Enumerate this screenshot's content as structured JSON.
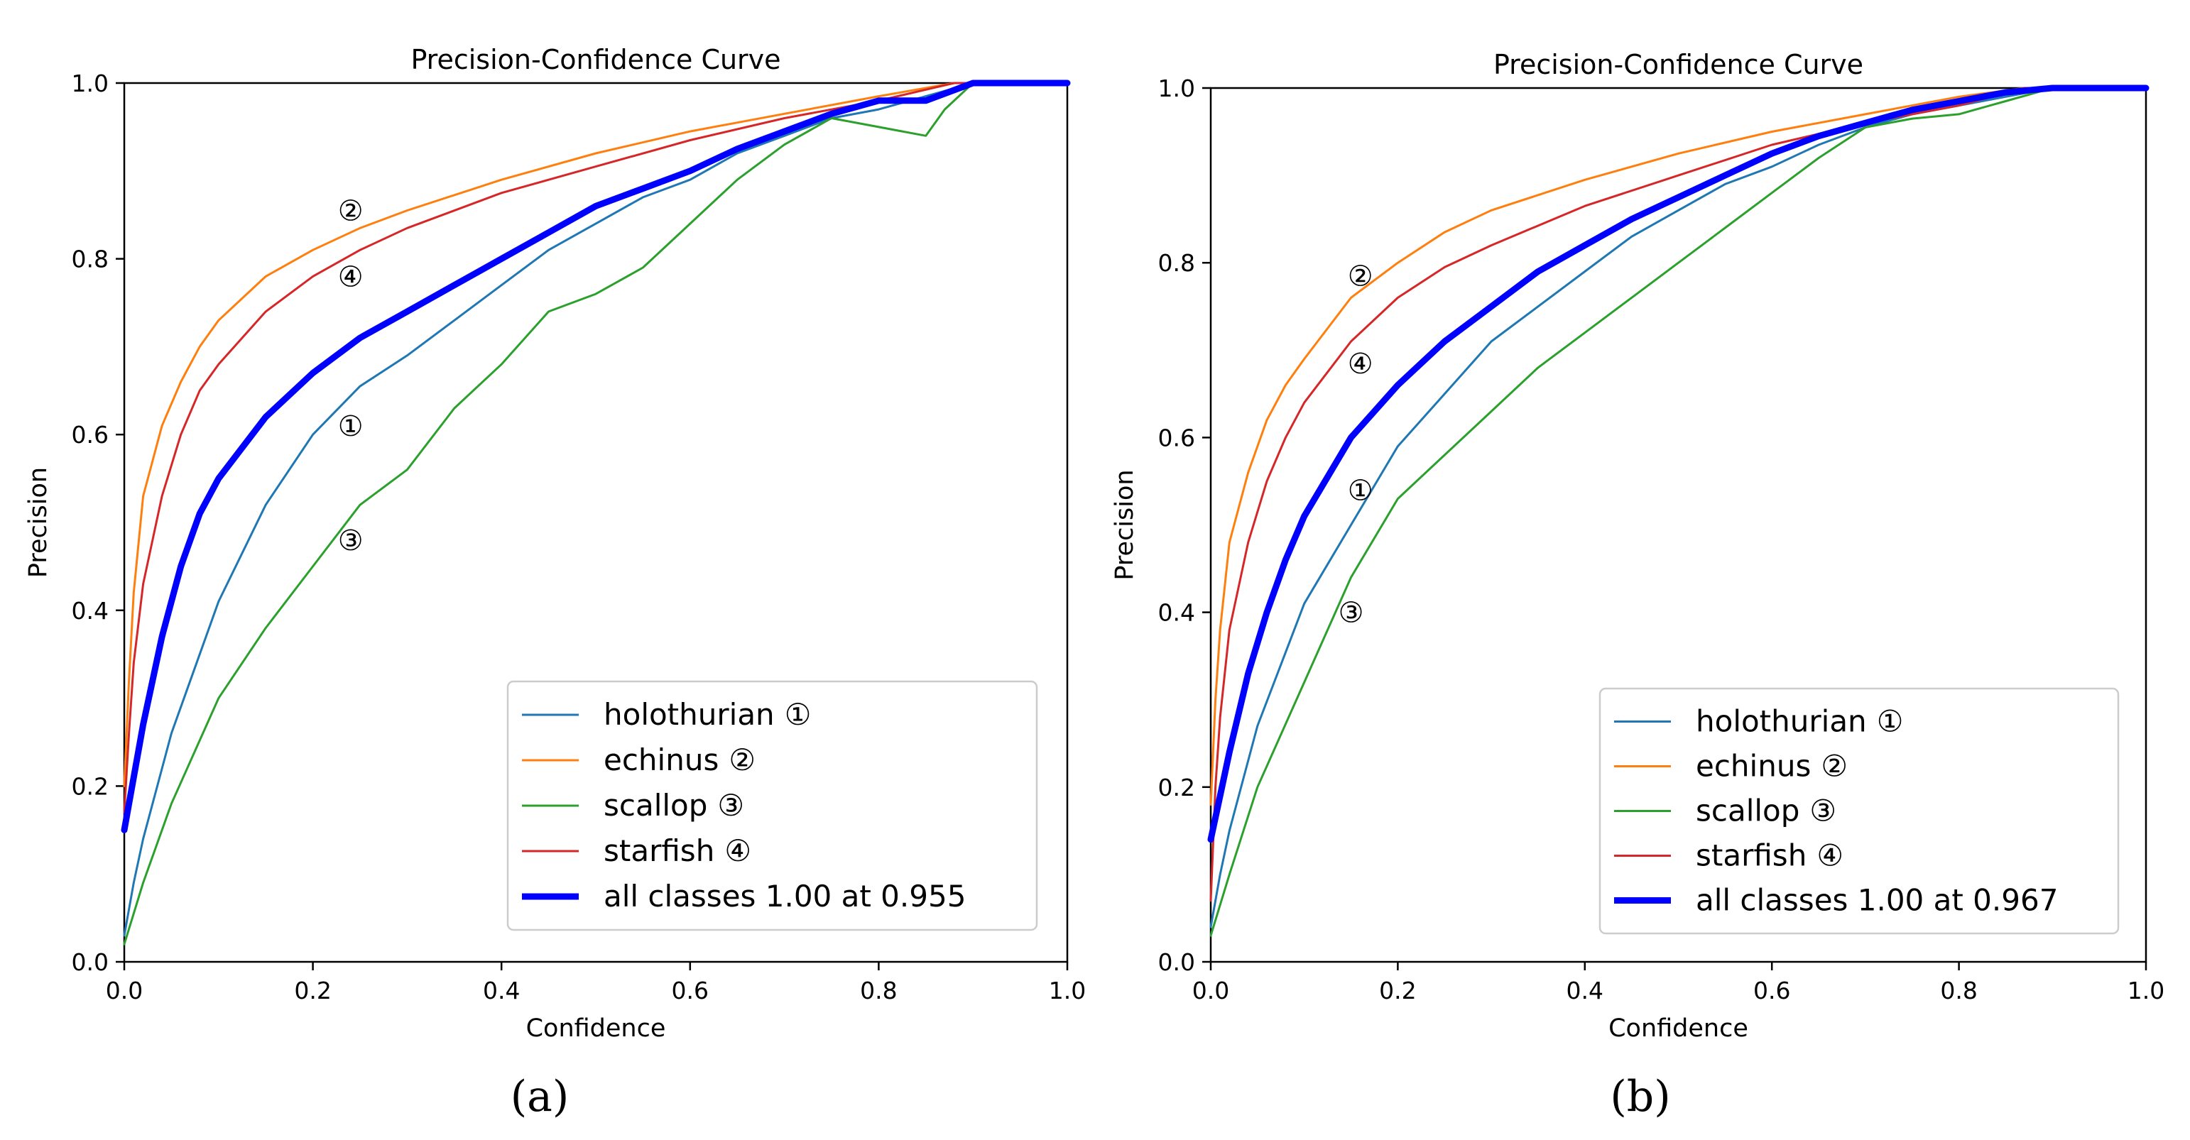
{
  "chart_data": [
    {
      "type": "line",
      "title": "Precision-Confidence Curve",
      "xlabel": "Confidence",
      "ylabel": "Precision",
      "xlim": [
        0,
        1
      ],
      "ylim": [
        0,
        1
      ],
      "xticks": [
        "0.0",
        "0.2",
        "0.4",
        "0.6",
        "0.8",
        "1.0"
      ],
      "yticks": [
        "0.0",
        "0.2",
        "0.4",
        "0.6",
        "0.8",
        "1.0"
      ],
      "legend_position": "lower-right",
      "caption": "(a)",
      "series": [
        {
          "name": "holothurian",
          "marker": "①",
          "color": "#1f77b4",
          "width": "thin",
          "x": [
            0,
            0.01,
            0.02,
            0.05,
            0.1,
            0.15,
            0.2,
            0.25,
            0.3,
            0.35,
            0.4,
            0.45,
            0.5,
            0.55,
            0.6,
            0.65,
            0.7,
            0.75,
            0.8,
            0.85,
            0.9,
            1.0
          ],
          "y": [
            0.03,
            0.09,
            0.14,
            0.26,
            0.41,
            0.52,
            0.6,
            0.655,
            0.69,
            0.73,
            0.77,
            0.81,
            0.84,
            0.87,
            0.89,
            0.92,
            0.94,
            0.96,
            0.97,
            0.985,
            1.0,
            1.0
          ]
        },
        {
          "name": "echinus",
          "marker": "②",
          "color": "#ff7f0e",
          "width": "thin",
          "x": [
            0,
            0.005,
            0.01,
            0.02,
            0.04,
            0.06,
            0.08,
            0.1,
            0.15,
            0.2,
            0.25,
            0.3,
            0.4,
            0.5,
            0.6,
            0.7,
            0.8,
            0.88,
            1.0
          ],
          "y": [
            0.2,
            0.32,
            0.42,
            0.53,
            0.61,
            0.66,
            0.7,
            0.73,
            0.78,
            0.81,
            0.835,
            0.855,
            0.89,
            0.92,
            0.945,
            0.965,
            0.985,
            1.0,
            1.0
          ]
        },
        {
          "name": "scallop",
          "marker": "③",
          "color": "#2ca02c",
          "width": "thin",
          "x": [
            0,
            0.02,
            0.05,
            0.1,
            0.15,
            0.2,
            0.25,
            0.3,
            0.35,
            0.4,
            0.45,
            0.5,
            0.55,
            0.6,
            0.65,
            0.7,
            0.75,
            0.8,
            0.85,
            0.87,
            0.9,
            1.0
          ],
          "y": [
            0.02,
            0.09,
            0.18,
            0.3,
            0.38,
            0.45,
            0.52,
            0.56,
            0.63,
            0.68,
            0.74,
            0.76,
            0.79,
            0.84,
            0.89,
            0.93,
            0.96,
            0.95,
            0.94,
            0.97,
            1.0,
            1.0
          ]
        },
        {
          "name": "starfish",
          "marker": "④",
          "color": "#d62728",
          "width": "thin",
          "x": [
            0,
            0.005,
            0.01,
            0.02,
            0.04,
            0.06,
            0.08,
            0.1,
            0.15,
            0.2,
            0.25,
            0.3,
            0.4,
            0.5,
            0.6,
            0.7,
            0.8,
            0.88,
            1.0
          ],
          "y": [
            0.17,
            0.26,
            0.34,
            0.43,
            0.53,
            0.6,
            0.65,
            0.68,
            0.74,
            0.78,
            0.81,
            0.835,
            0.875,
            0.905,
            0.935,
            0.96,
            0.98,
            1.0,
            1.0
          ]
        },
        {
          "name": "all classes 1.00 at 0.955",
          "marker": "",
          "color": "#0000ff",
          "width": "thick",
          "x": [
            0,
            0.01,
            0.02,
            0.04,
            0.06,
            0.08,
            0.1,
            0.15,
            0.2,
            0.25,
            0.3,
            0.35,
            0.4,
            0.45,
            0.5,
            0.55,
            0.6,
            0.65,
            0.7,
            0.75,
            0.8,
            0.85,
            0.9,
            1.0
          ],
          "y": [
            0.15,
            0.21,
            0.27,
            0.37,
            0.45,
            0.51,
            0.55,
            0.62,
            0.67,
            0.71,
            0.74,
            0.77,
            0.8,
            0.83,
            0.86,
            0.88,
            0.9,
            0.925,
            0.945,
            0.965,
            0.98,
            0.98,
            1.0,
            1.0
          ]
        }
      ],
      "annotations": [
        {
          "text": "②",
          "x": 0.24,
          "y": 0.855
        },
        {
          "text": "④",
          "x": 0.24,
          "y": 0.78
        },
        {
          "text": "①",
          "x": 0.24,
          "y": 0.61
        },
        {
          "text": "③",
          "x": 0.24,
          "y": 0.48
        }
      ]
    },
    {
      "type": "line",
      "title": "Precision-Confidence Curve",
      "xlabel": "Confidence",
      "ylabel": "Precision",
      "xlim": [
        0,
        1
      ],
      "ylim": [
        0,
        1
      ],
      "xticks": [
        "0.0",
        "0.2",
        "0.4",
        "0.6",
        "0.8",
        "1.0"
      ],
      "yticks": [
        "0.0",
        "0.2",
        "0.4",
        "0.6",
        "0.8",
        "1.0"
      ],
      "legend_position": "lower-right",
      "caption": "(b)",
      "series": [
        {
          "name": "holothurian",
          "marker": "①",
          "color": "#1f77b4",
          "width": "thin",
          "x": [
            0,
            0.01,
            0.02,
            0.05,
            0.1,
            0.15,
            0.2,
            0.25,
            0.3,
            0.35,
            0.4,
            0.45,
            0.5,
            0.55,
            0.6,
            0.65,
            0.7,
            0.75,
            0.8,
            0.85,
            0.9,
            1.0
          ],
          "y": [
            0.04,
            0.1,
            0.15,
            0.27,
            0.41,
            0.5,
            0.59,
            0.65,
            0.71,
            0.75,
            0.79,
            0.83,
            0.86,
            0.89,
            0.91,
            0.935,
            0.955,
            0.97,
            0.98,
            0.99,
            1.0,
            1.0
          ]
        },
        {
          "name": "echinus",
          "marker": "②",
          "color": "#ff7f0e",
          "width": "thin",
          "x": [
            0,
            0.005,
            0.01,
            0.02,
            0.04,
            0.06,
            0.08,
            0.1,
            0.15,
            0.2,
            0.25,
            0.3,
            0.4,
            0.5,
            0.6,
            0.7,
            0.8,
            0.87,
            1.0
          ],
          "y": [
            0.18,
            0.3,
            0.38,
            0.48,
            0.56,
            0.62,
            0.66,
            0.69,
            0.76,
            0.8,
            0.835,
            0.86,
            0.895,
            0.925,
            0.95,
            0.97,
            0.99,
            1.0,
            1.0
          ]
        },
        {
          "name": "scallop",
          "marker": "③",
          "color": "#2ca02c",
          "width": "thin",
          "x": [
            0,
            0.02,
            0.05,
            0.1,
            0.15,
            0.2,
            0.25,
            0.3,
            0.35,
            0.4,
            0.45,
            0.5,
            0.55,
            0.6,
            0.65,
            0.7,
            0.75,
            0.8,
            0.85,
            0.9,
            1.0
          ],
          "y": [
            0.03,
            0.1,
            0.2,
            0.32,
            0.44,
            0.53,
            0.58,
            0.63,
            0.68,
            0.72,
            0.76,
            0.8,
            0.84,
            0.88,
            0.92,
            0.955,
            0.965,
            0.97,
            0.985,
            1.0,
            1.0
          ]
        },
        {
          "name": "starfish",
          "marker": "④",
          "color": "#d62728",
          "width": "thin",
          "x": [
            0,
            0.005,
            0.01,
            0.02,
            0.04,
            0.06,
            0.08,
            0.1,
            0.15,
            0.2,
            0.25,
            0.3,
            0.4,
            0.5,
            0.6,
            0.7,
            0.8,
            0.87,
            1.0
          ],
          "y": [
            0.07,
            0.2,
            0.28,
            0.38,
            0.48,
            0.55,
            0.6,
            0.64,
            0.71,
            0.76,
            0.795,
            0.82,
            0.865,
            0.9,
            0.935,
            0.96,
            0.98,
            1.0,
            1.0
          ]
        },
        {
          "name": "all classes 1.00 at 0.967",
          "marker": "",
          "color": "#0000ff",
          "width": "thick",
          "x": [
            0,
            0.01,
            0.02,
            0.04,
            0.06,
            0.08,
            0.1,
            0.15,
            0.2,
            0.25,
            0.3,
            0.35,
            0.4,
            0.45,
            0.5,
            0.55,
            0.6,
            0.65,
            0.7,
            0.75,
            0.8,
            0.85,
            0.9,
            1.0
          ],
          "y": [
            0.14,
            0.19,
            0.24,
            0.33,
            0.4,
            0.46,
            0.51,
            0.6,
            0.66,
            0.71,
            0.75,
            0.79,
            0.82,
            0.85,
            0.875,
            0.9,
            0.925,
            0.945,
            0.96,
            0.975,
            0.985,
            0.995,
            1.0,
            1.0
          ]
        }
      ],
      "annotations": [
        {
          "text": "②",
          "x": 0.16,
          "y": 0.785
        },
        {
          "text": "④",
          "x": 0.16,
          "y": 0.685
        },
        {
          "text": "①",
          "x": 0.16,
          "y": 0.54
        },
        {
          "text": "③",
          "x": 0.15,
          "y": 0.4
        }
      ]
    }
  ]
}
